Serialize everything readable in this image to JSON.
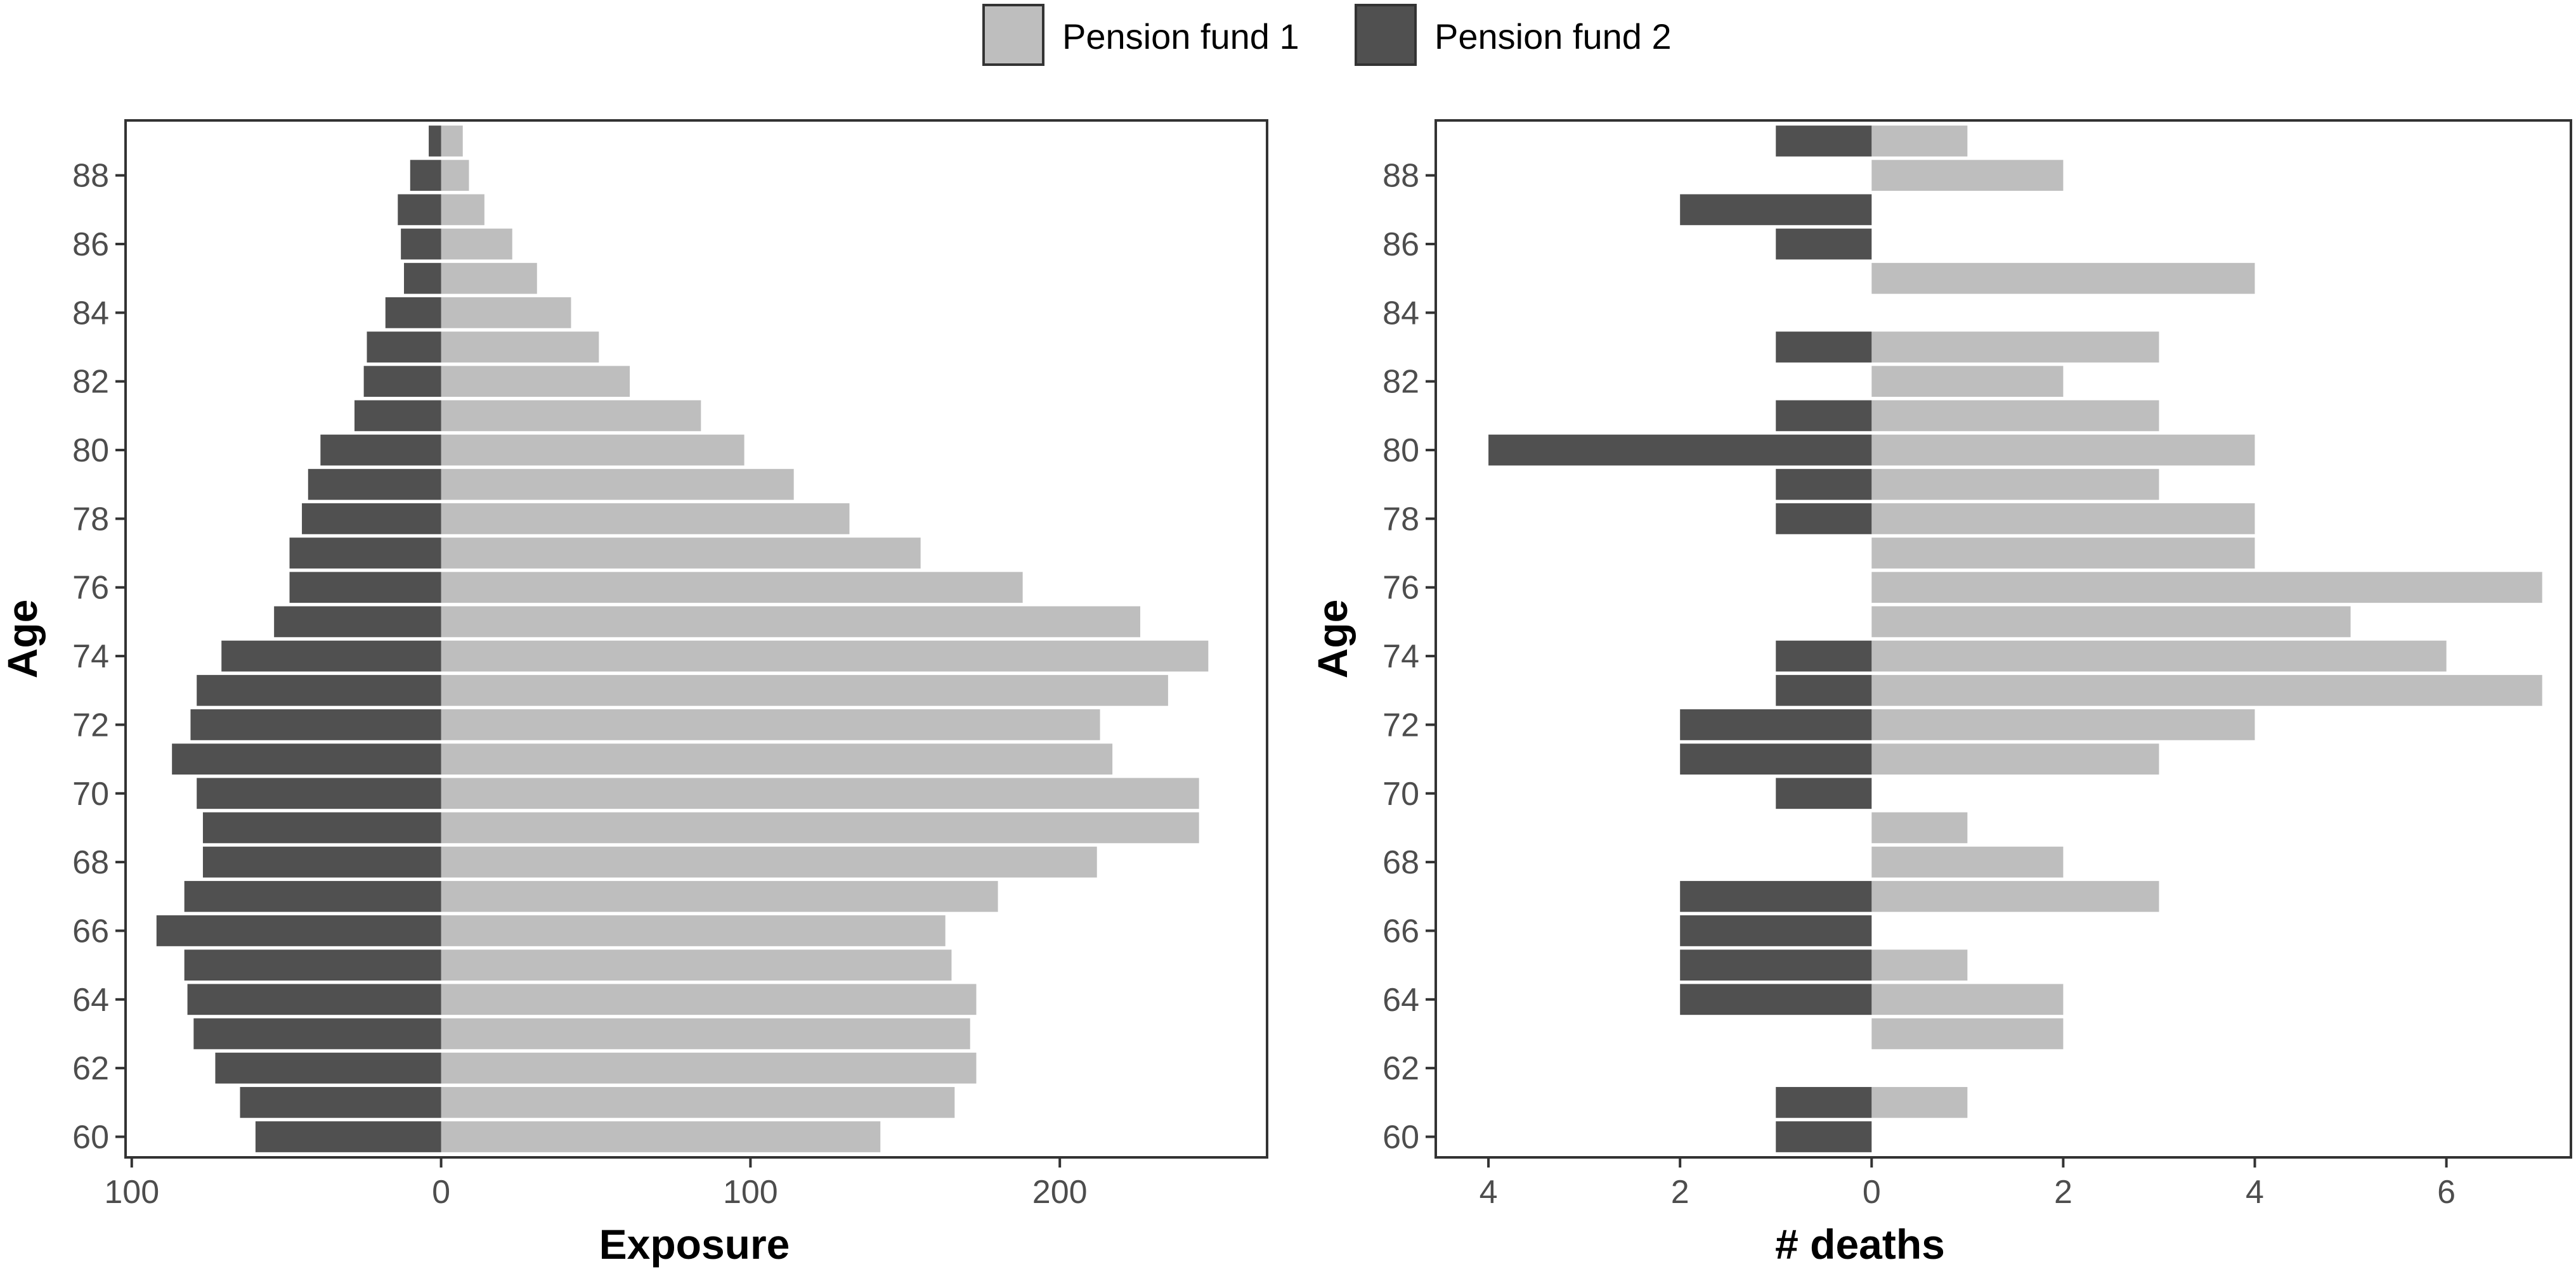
{
  "legend": {
    "items": [
      {
        "label": "Pension fund 1",
        "color": "#bebebe"
      },
      {
        "label": "Pension fund 2",
        "color": "#505050"
      }
    ]
  },
  "chart_data": [
    {
      "type": "bar",
      "orientation": "horizontal",
      "layout": "population-pyramid",
      "xlabel": "Exposure",
      "ylabel": "Age",
      "xlim": [
        -102,
        267
      ],
      "xtick_values": [
        -100,
        0,
        100,
        200
      ],
      "xtick_labels": [
        "100",
        "0",
        "100",
        "200"
      ],
      "ytick_labels": [
        "60",
        "62",
        "64",
        "66",
        "68",
        "70",
        "72",
        "74",
        "76",
        "78",
        "80",
        "82",
        "84",
        "86",
        "88"
      ],
      "categories": [
        60,
        61,
        62,
        63,
        64,
        65,
        66,
        67,
        68,
        69,
        70,
        71,
        72,
        73,
        74,
        75,
        76,
        77,
        78,
        79,
        80,
        81,
        82,
        83,
        84,
        85,
        86,
        87,
        88,
        89
      ],
      "series": [
        {
          "name": "Pension fund 1",
          "side": "right",
          "values": [
            142,
            166,
            173,
            171,
            173,
            165,
            163,
            180,
            212,
            245,
            245,
            217,
            213,
            235,
            248,
            226,
            188,
            155,
            132,
            114,
            98,
            84,
            61,
            51,
            42,
            31,
            23,
            14,
            9,
            7
          ]
        },
        {
          "name": "Pension fund 2",
          "side": "left",
          "values": [
            60,
            65,
            73,
            80,
            82,
            83,
            92,
            83,
            77,
            77,
            79,
            87,
            81,
            79,
            71,
            54,
            49,
            49,
            45,
            43,
            39,
            28,
            25,
            24,
            18,
            12,
            13,
            14,
            10,
            4
          ]
        }
      ],
      "grid": false,
      "legend_position": "top-center"
    },
    {
      "type": "bar",
      "orientation": "horizontal",
      "layout": "population-pyramid",
      "xlabel": "# deaths",
      "ylabel": "Age",
      "xlim": [
        -4.55,
        7.3
      ],
      "xtick_values": [
        -4,
        -2,
        0,
        2,
        4,
        6
      ],
      "xtick_labels": [
        "4",
        "2",
        "0",
        "2",
        "4",
        "6"
      ],
      "ytick_labels": [
        "60",
        "62",
        "64",
        "66",
        "68",
        "70",
        "72",
        "74",
        "76",
        "78",
        "80",
        "82",
        "84",
        "86",
        "88"
      ],
      "categories": [
        60,
        61,
        62,
        63,
        64,
        65,
        66,
        67,
        68,
        69,
        70,
        71,
        72,
        73,
        74,
        75,
        76,
        77,
        78,
        79,
        80,
        81,
        82,
        83,
        84,
        85,
        86,
        87,
        88,
        89
      ],
      "series": [
        {
          "name": "Pension fund 1",
          "side": "right",
          "values": [
            0,
            1,
            0,
            2,
            2,
            1,
            0,
            3,
            2,
            1,
            0,
            3,
            4,
            7,
            6,
            5,
            7,
            4,
            4,
            3,
            4,
            3,
            2,
            3,
            0,
            4,
            0,
            0,
            2,
            1
          ]
        },
        {
          "name": "Pension fund 2",
          "side": "left",
          "values": [
            1,
            1,
            0,
            0,
            2,
            2,
            2,
            2,
            0,
            0,
            1,
            2,
            2,
            1,
            1,
            0,
            0,
            0,
            1,
            1,
            4,
            1,
            0,
            1,
            0,
            0,
            1,
            2,
            0,
            1
          ]
        }
      ],
      "grid": false
    }
  ]
}
